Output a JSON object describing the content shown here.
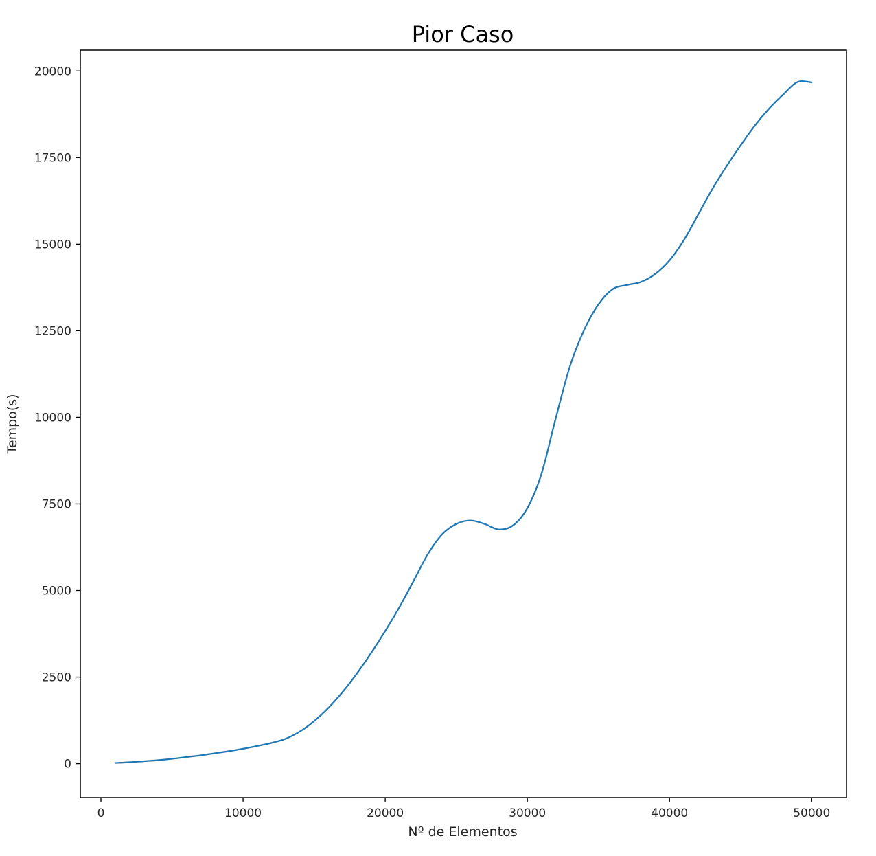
{
  "chart_data": {
    "type": "line",
    "title": "Pior Caso",
    "xlabel": "Nº de Elementos",
    "ylabel": "Tempo(s)",
    "xlim": [
      -1450,
      52450
    ],
    "ylim": [
      -980,
      20600
    ],
    "xticks": [
      0,
      10000,
      20000,
      30000,
      40000,
      50000
    ],
    "yticks": [
      0,
      2500,
      5000,
      7500,
      10000,
      12500,
      15000,
      17500,
      20000
    ],
    "grid": false,
    "legend": "none",
    "series": [
      {
        "color": "#1f77b4",
        "x": [
          1000,
          2000,
          3000,
          4000,
          5000,
          6000,
          7000,
          8000,
          9000,
          10000,
          11000,
          12000,
          13000,
          14000,
          15000,
          16000,
          17000,
          18000,
          19000,
          20000,
          21000,
          22000,
          23000,
          24000,
          25000,
          26000,
          27000,
          28000,
          29000,
          30000,
          31000,
          32000,
          33000,
          34000,
          35000,
          36000,
          37000,
          38000,
          39000,
          40000,
          41000,
          42000,
          43000,
          44000,
          45000,
          46000,
          47000,
          48000,
          49000,
          50000
        ],
        "y": [
          20,
          40,
          70,
          100,
          140,
          190,
          240,
          300,
          360,
          430,
          510,
          600,
          720,
          930,
          1230,
          1610,
          2070,
          2600,
          3190,
          3830,
          4520,
          5280,
          6050,
          6620,
          6920,
          7020,
          6920,
          6760,
          6880,
          7380,
          8380,
          9980,
          11480,
          12530,
          13260,
          13700,
          13820,
          13910,
          14140,
          14530,
          15110,
          15840,
          16580,
          17240,
          17850,
          18420,
          18910,
          19320,
          19680,
          19670
        ]
      }
    ]
  }
}
